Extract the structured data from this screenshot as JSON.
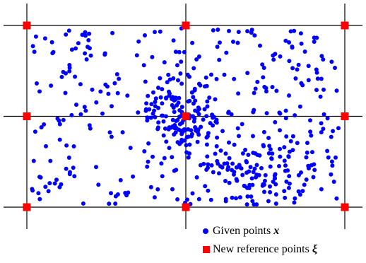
{
  "chart_data": {
    "type": "scatter",
    "grid": {
      "x_lines": [
        0,
        1,
        2
      ],
      "y_lines": [
        0,
        1,
        2
      ]
    },
    "reference_points": {
      "name": "New reference points",
      "symbol": "ξ",
      "color": "#ff0000",
      "points": [
        [
          0,
          0
        ],
        [
          1,
          0
        ],
        [
          2,
          0
        ],
        [
          0,
          1
        ],
        [
          1,
          1
        ],
        [
          2,
          1
        ],
        [
          0,
          2
        ],
        [
          1,
          2
        ],
        [
          2,
          2
        ]
      ]
    },
    "given_points": {
      "name": "Given points",
      "symbol": "x",
      "color": "#0000ff",
      "count": 560,
      "distribution": "random, denser near (1, 1) and in region x 1.2–1.6, y 1.4–1.8"
    }
  },
  "legend": {
    "given_label": "Given points",
    "given_symbol": "x",
    "reference_label": "New reference points",
    "reference_symbol": "ξ"
  }
}
